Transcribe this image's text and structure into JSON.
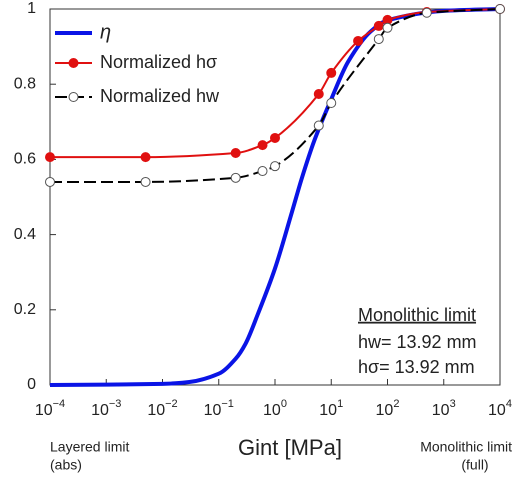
{
  "chart_data": {
    "type": "line",
    "xlabel": "Gint [MPa]",
    "log_x": true,
    "xlim": [
      0.0001,
      10000
    ],
    "ylim": [
      0,
      1
    ],
    "xticks": [
      {
        "value": 0.0001,
        "label": "10−4"
      },
      {
        "value": 0.001,
        "label": "10−3"
      },
      {
        "value": 0.01,
        "label": "10−2"
      },
      {
        "value": 0.1,
        "label": "10−1"
      },
      {
        "value": 1,
        "label": "100"
      },
      {
        "value": 10,
        "label": "101"
      },
      {
        "value": 100,
        "label": "102"
      },
      {
        "value": 1000,
        "label": "103"
      },
      {
        "value": 10000,
        "label": "104"
      }
    ],
    "yticks": [
      0,
      0.2,
      0.4,
      0.6,
      0.8,
      1
    ],
    "grid": false,
    "legend": "top-left",
    "series": [
      {
        "name": "η",
        "color": "#0a14e6",
        "markers": false,
        "dashed": false,
        "x": [
          0.0001,
          0.001,
          0.01,
          0.03,
          0.1,
          0.2,
          0.3,
          0.5,
          1,
          2,
          3,
          5,
          10,
          20,
          50,
          100,
          1000,
          10000
        ],
        "values": [
          0,
          0.001,
          0.003,
          0.008,
          0.03,
          0.07,
          0.11,
          0.19,
          0.31,
          0.46,
          0.55,
          0.65,
          0.76,
          0.86,
          0.94,
          0.97,
          0.995,
          1
        ]
      },
      {
        "name": "Normalized hσ",
        "color": "#e01010",
        "markers": true,
        "marker_fill": "#e01010",
        "dashed": false,
        "x": [
          0.0001,
          0.005,
          0.2,
          0.6,
          1,
          6,
          10,
          30,
          70,
          100,
          500,
          10000
        ],
        "values": [
          0.606,
          0.606,
          0.617,
          0.638,
          0.657,
          0.774,
          0.83,
          0.915,
          0.955,
          0.971,
          0.992,
          1
        ]
      },
      {
        "name": "Normalized hw",
        "color": "#000000",
        "markers": true,
        "marker_fill": "#ffffff",
        "dashed": true,
        "x": [
          0.0001,
          0.005,
          0.2,
          0.6,
          1,
          6,
          10,
          70,
          100,
          500,
          10000
        ],
        "values": [
          0.54,
          0.54,
          0.551,
          0.569,
          0.582,
          0.69,
          0.75,
          0.92,
          0.95,
          0.99,
          1
        ]
      }
    ],
    "annotation": {
      "title": "Monolithic limit",
      "lines": [
        "hw= 13.92 mm",
        "hσ= 13.92 mm"
      ]
    },
    "left_note": [
      "Layered limit",
      "(abs)"
    ],
    "right_note": [
      "Monolithic limit",
      "(full)"
    ]
  }
}
